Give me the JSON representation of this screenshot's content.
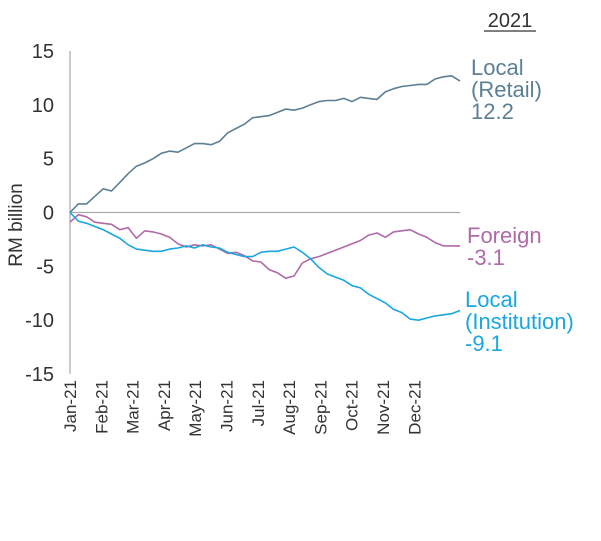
{
  "chart_data": {
    "type": "line",
    "title": "2021",
    "xlabel": "",
    "ylabel": "RM billion",
    "ylim": [
      -15,
      15
    ],
    "yticks": [
      15,
      10,
      5,
      0,
      -5,
      -10,
      -15
    ],
    "ytick_labels": [
      "15",
      "10",
      "5",
      "0",
      "-5",
      "-10",
      "-15"
    ],
    "grid": false,
    "x_tick_labels": [
      "Jan-21",
      "Feb-21",
      "Mar-21",
      "Apr-21",
      "May-21",
      "Jun-21",
      "Jul-21",
      "Aug-21",
      "Sep-21",
      "Oct-21",
      "Nov-21",
      "Dec-21"
    ],
    "x": [
      0,
      0.25,
      0.5,
      0.75,
      1,
      1.25,
      1.5,
      1.75,
      2,
      2.25,
      2.5,
      2.75,
      3,
      3.25,
      3.5,
      3.75,
      4,
      4.25,
      4.5,
      4.75,
      5,
      5.25,
      5.5,
      5.75,
      6,
      6.25,
      6.5,
      6.75,
      7,
      7.25,
      7.5,
      7.75,
      8,
      8.25,
      8.5,
      8.75,
      9,
      9.25,
      9.5,
      9.75,
      10,
      10.25,
      10.5,
      10.75,
      11,
      11.25,
      11.5,
      11.75
    ],
    "x_unit": "months since Jan-21",
    "series": [
      {
        "name": "Local (Retail)",
        "color": "#5b7f95",
        "end_value": 12.2,
        "label_lines": [
          "Local",
          "(Retail)",
          "12.2"
        ],
        "values": [
          0,
          0.8,
          0.8,
          1.5,
          2.2,
          2.0,
          2.8,
          3.6,
          4.3,
          4.6,
          5.0,
          5.5,
          5.7,
          5.6,
          6.0,
          6.4,
          6.4,
          6.3,
          6.6,
          7.4,
          7.8,
          8.2,
          8.8,
          8.9,
          9.0,
          9.3,
          9.6,
          9.5,
          9.7,
          10.0,
          10.3,
          10.4,
          10.4,
          10.6,
          10.3,
          10.7,
          10.6,
          10.5,
          11.2,
          11.5,
          11.7,
          11.8,
          11.9,
          11.9,
          12.4,
          12.6,
          12.7,
          12.2
        ]
      },
      {
        "name": "Foreign",
        "color": "#b06aa8",
        "end_value": -3.1,
        "label_lines": [
          "Foreign",
          "-3.1"
        ],
        "values": [
          -0.9,
          -0.2,
          -0.4,
          -0.9,
          -1.0,
          -1.1,
          -1.6,
          -1.4,
          -2.4,
          -1.7,
          -1.8,
          -2.0,
          -2.3,
          -2.9,
          -3.2,
          -3.0,
          -3.1,
          -3.0,
          -3.4,
          -3.8,
          -3.7,
          -4.0,
          -4.5,
          -4.6,
          -5.3,
          -5.6,
          -6.1,
          -5.9,
          -4.7,
          -4.3,
          -4.1,
          -3.8,
          -3.5,
          -3.2,
          -2.9,
          -2.6,
          -2.1,
          -1.9,
          -2.3,
          -1.8,
          -1.7,
          -1.6,
          -2.0,
          -2.3,
          -2.8,
          -3.1,
          -3.1,
          -3.1
        ]
      },
      {
        "name": "Local (Institution)",
        "color": "#1aa6e0",
        "end_value": -9.1,
        "label_lines": [
          "Local",
          "(Institution)",
          "-9.1"
        ],
        "values": [
          0,
          -0.8,
          -1.0,
          -1.3,
          -1.6,
          -2.0,
          -2.4,
          -3.0,
          -3.4,
          -3.5,
          -3.6,
          -3.6,
          -3.4,
          -3.3,
          -3.1,
          -3.3,
          -3.0,
          -3.2,
          -3.3,
          -3.7,
          -3.9,
          -4.1,
          -4.1,
          -3.7,
          -3.6,
          -3.6,
          -3.4,
          -3.2,
          -3.7,
          -4.3,
          -5.1,
          -5.7,
          -6.0,
          -6.3,
          -6.8,
          -7.0,
          -7.6,
          -8.0,
          -8.4,
          -9.0,
          -9.3,
          -9.9,
          -10.0,
          -9.8,
          -9.6,
          -9.5,
          -9.4,
          -9.1
        ]
      }
    ]
  }
}
